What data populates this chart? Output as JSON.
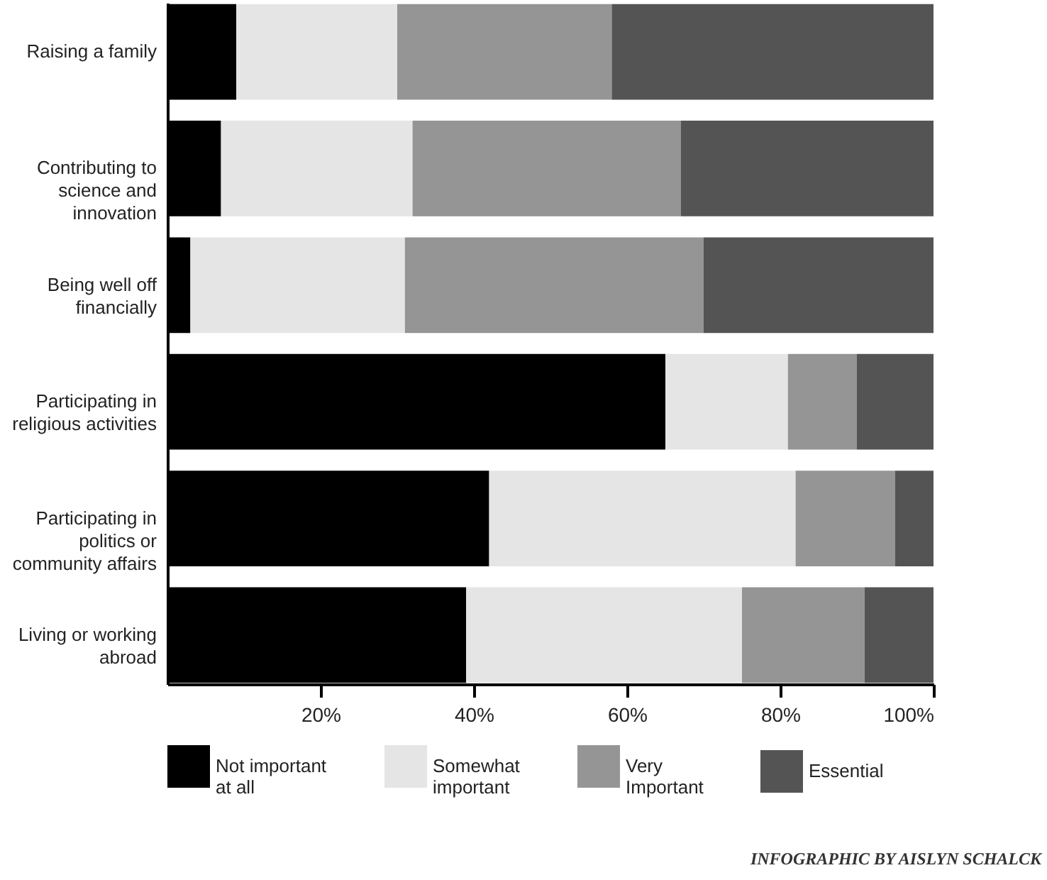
{
  "chart_data": {
    "type": "bar",
    "orientation": "horizontal",
    "stacked": true,
    "categories": [
      "Raising a family",
      "Contributing to science and innovation",
      "Being well off financially",
      "Participating in religious activities",
      "Participating in politics or community affairs",
      "Living or working abroad"
    ],
    "series": [
      {
        "name": "Not important at all",
        "color": "#000000",
        "values": [
          9,
          7,
          3,
          65,
          42,
          39
        ]
      },
      {
        "name": "Somewhat important",
        "color": "#e5e5e5",
        "values": [
          21,
          25,
          28,
          16,
          40,
          36
        ]
      },
      {
        "name": "Very Important",
        "color": "#959595",
        "values": [
          28,
          35,
          39,
          9,
          13,
          16
        ]
      },
      {
        "name": "Essential",
        "color": "#545454",
        "values": [
          42,
          33,
          30,
          10,
          5,
          9
        ]
      }
    ],
    "xlim": [
      0,
      100
    ],
    "xticks": [
      {
        "value": 20,
        "label": "20%"
      },
      {
        "value": 40,
        "label": "40%"
      },
      {
        "value": 60,
        "label": "60%"
      },
      {
        "value": 80,
        "label": "80%"
      },
      {
        "value": 100,
        "label": "100%"
      }
    ],
    "legend": "bottom",
    "annotations": [
      "INFOGRAPHIC BY AISLYN SCHALCK"
    ]
  }
}
